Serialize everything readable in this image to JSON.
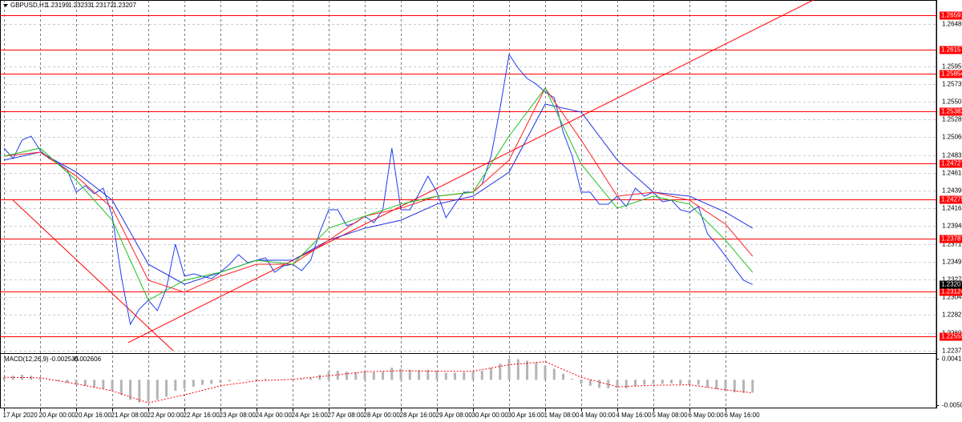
{
  "chart_data": [
    {
      "type": "line",
      "symbol": "GBPUSD,H1",
      "header_values": [
        1.23199,
        1.23233,
        1.23172,
        1.23207
      ],
      "xlim": [
        -1.8,
        413.5
      ],
      "ylim": [
        1.22355,
        1.26782
      ],
      "grid": true,
      "xticks": [
        {
          "value": 0,
          "label": "17 Apr 2020"
        },
        {
          "value": 16,
          "label": "20 Apr 00:00"
        },
        {
          "value": 32,
          "label": "20 Apr 16:00"
        },
        {
          "value": 48,
          "label": "21 Apr 08:00"
        },
        {
          "value": 64,
          "label": "22 Apr 00:00"
        },
        {
          "value": 80,
          "label": "22 Apr 16:00"
        },
        {
          "value": 96,
          "label": "23 Apr 08:00"
        },
        {
          "value": 112,
          "label": "24 Apr 00:00"
        },
        {
          "value": 128,
          "label": "24 Apr 16:00"
        },
        {
          "value": 144,
          "label": "27 Apr 08:00"
        },
        {
          "value": 160,
          "label": "28 Apr 00:00"
        },
        {
          "value": 176,
          "label": "28 Apr 16:00"
        },
        {
          "value": 192,
          "label": "29 Apr 08:00"
        },
        {
          "value": 208,
          "label": "30 Apr 00:00"
        },
        {
          "value": 224,
          "label": "30 Apr 16:00"
        },
        {
          "value": 240,
          "label": "1 May 08:00"
        },
        {
          "value": 256,
          "label": "4 May 00:00"
        },
        {
          "value": 272,
          "label": "4 May 16:00"
        },
        {
          "value": 288,
          "label": "5 May 08:00"
        },
        {
          "value": 304,
          "label": "6 May 00:00"
        },
        {
          "value": 320,
          "label": "6 May 16:00"
        }
      ],
      "yticks": [
        {
          "value": 1.2648,
          "label": "1.26480"
        },
        {
          "value": 1.2595,
          "label": "1.25950"
        },
        {
          "value": 1.2573,
          "label": "1.25730"
        },
        {
          "value": 1.25505,
          "label": "1.25505"
        },
        {
          "value": 1.2528,
          "label": "1.25280"
        },
        {
          "value": 1.2506,
          "label": "1.25060"
        },
        {
          "value": 1.24835,
          "label": "1.24835"
        },
        {
          "value": 1.2461,
          "label": "1.24610"
        },
        {
          "value": 1.2439,
          "label": "1.24390"
        },
        {
          "value": 1.24165,
          "label": "1.24165"
        },
        {
          "value": 1.2394,
          "label": "1.23940"
        },
        {
          "value": 1.23715,
          "label": "1.23715"
        },
        {
          "value": 1.23495,
          "label": "1.23495"
        },
        {
          "value": 1.2327,
          "label": "1.23270"
        },
        {
          "value": 1.23045,
          "label": "1.23045"
        },
        {
          "value": 1.22825,
          "label": "1.22825"
        },
        {
          "value": 1.226,
          "label": "1.22600"
        },
        {
          "value": 1.22375,
          "label": "1.22375"
        }
      ],
      "levels": [
        1.26591,
        1.26157,
        1.25854,
        1.25382,
        1.24727,
        1.24275,
        1.23787,
        1.23124,
        1.22555
      ],
      "level_color": "#ff0000",
      "trendlines": [
        {
          "x": [
            4,
            75
          ],
          "values": [
            1.24266,
            1.22375
          ]
        },
        {
          "x": [
            55,
            359
          ],
          "values": [
            1.22476,
            1.26782
          ]
        }
      ],
      "series": [
        {
          "color": "#1f3df0",
          "x": [
            0,
            4,
            8,
            12,
            16,
            20,
            24,
            28,
            32,
            36,
            40,
            44,
            48,
            52,
            56,
            60,
            64,
            68,
            72,
            76,
            80,
            84,
            88,
            92,
            96,
            100,
            104,
            108,
            112,
            116,
            120,
            124,
            128,
            132,
            136,
            140,
            144,
            148,
            152,
            156,
            160,
            164,
            168,
            172,
            176,
            180,
            184,
            188,
            192,
            196,
            200,
            204,
            208,
            212,
            216,
            220,
            224,
            228,
            232,
            236,
            240,
            244,
            248,
            252,
            256,
            260,
            264,
            268,
            272,
            276,
            280,
            284,
            288,
            292,
            296,
            300,
            304,
            308,
            312,
            316,
            320,
            324,
            328,
            332
          ],
          "values": [
            1.24921,
            1.2479,
            1.25021,
            1.25072,
            1.24891,
            1.2479,
            1.2473,
            1.24649,
            1.24367,
            1.24448,
            1.24347,
            1.24418,
            1.24066,
            1.23311,
            1.22708,
            1.22899,
            1.23009,
            1.22879,
            1.2316,
            1.23714,
            1.23311,
            1.23341,
            1.23311,
            1.23281,
            1.23361,
            1.23462,
            1.23583,
            1.23482,
            1.23512,
            1.23543,
            1.23361,
            1.23442,
            1.23462,
            1.23382,
            1.23512,
            1.23864,
            1.24146,
            1.24146,
            1.23945,
            1.23985,
            1.24066,
            1.23985,
            1.24146,
            1.24921,
            1.24146,
            1.24146,
            1.24347,
            1.24569,
            1.24367,
            1.24046,
            1.24217,
            1.24367,
            1.24367,
            1.24468,
            1.2482,
            1.25424,
            1.26098,
            1.25927,
            1.25796,
            1.25726,
            1.25625,
            1.25555,
            1.25122,
            1.2482,
            1.24367,
            1.24367,
            1.24217,
            1.24217,
            1.24317,
            1.24186,
            1.24418,
            1.24317,
            1.24367,
            1.24247,
            1.24267,
            1.24146,
            1.24116,
            1.24186,
            1.23844,
            1.23714,
            1.23563,
            1.23412,
            1.23261,
            1.23207
          ]
        },
        {
          "color": "#2030e0",
          "x": [
            0,
            16,
            32,
            48,
            64,
            80,
            96,
            112,
            128,
            144,
            160,
            176,
            192,
            208,
            224,
            240,
            256,
            272,
            288,
            304,
            320,
            332
          ],
          "values": [
            1.2477,
            1.2487,
            1.24619,
            1.24267,
            1.23462,
            1.23211,
            1.23361,
            1.23512,
            1.23512,
            1.23764,
            1.23915,
            1.24015,
            1.24217,
            1.24317,
            1.24619,
            1.25474,
            1.25373,
            1.2477,
            1.24367,
            1.24317,
            1.24116,
            1.23915
          ]
        },
        {
          "color": "#ff2020",
          "x": [
            0,
            16,
            32,
            48,
            64,
            80,
            96,
            112,
            128,
            144,
            160,
            176,
            192,
            208,
            224,
            240,
            256,
            272,
            288,
            304,
            320,
            332
          ],
          "values": [
            1.2482,
            1.2487,
            1.24569,
            1.24166,
            1.23261,
            1.2311,
            1.23311,
            1.23462,
            1.23462,
            1.23764,
            1.24066,
            1.24166,
            1.24317,
            1.24367,
            1.2477,
            1.25675,
            1.25021,
            1.24317,
            1.24367,
            1.24267,
            1.23965,
            1.23563
          ]
        },
        {
          "color": "#20c020",
          "x": [
            0,
            16,
            32,
            48,
            64,
            80,
            96,
            112,
            128,
            144,
            160,
            176,
            192,
            208,
            224,
            240,
            256,
            272,
            288,
            304,
            320,
            332
          ],
          "values": [
            1.2482,
            1.24921,
            1.24518,
            1.24015,
            1.23009,
            1.23261,
            1.23361,
            1.23512,
            1.23462,
            1.23915,
            1.24066,
            1.24217,
            1.24317,
            1.24367,
            1.25072,
            1.25675,
            1.2472,
            1.24166,
            1.24317,
            1.24217,
            1.23764,
            1.23361
          ]
        }
      ]
    },
    {
      "type": "macd",
      "label": "MACD(12,26,9)",
      "values_shown": [
        -0.002535,
        -0.002606
      ],
      "ylim": [
        -0.005698,
        0.004989
      ],
      "yticks": [
        0.004191,
        -0.00506
      ],
      "series": [
        {
          "style": "bar",
          "color": "#b4b4b4",
          "x": [
            0,
            4,
            8,
            12,
            16,
            20,
            24,
            28,
            32,
            36,
            40,
            44,
            48,
            52,
            56,
            60,
            64,
            68,
            72,
            76,
            80,
            84,
            88,
            92,
            96,
            100,
            104,
            108,
            112,
            116,
            120,
            124,
            128,
            132,
            136,
            140,
            144,
            148,
            152,
            156,
            160,
            164,
            168,
            172,
            176,
            180,
            184,
            188,
            192,
            196,
            200,
            204,
            208,
            212,
            216,
            220,
            224,
            228,
            232,
            236,
            240,
            244,
            248,
            252,
            256,
            260,
            264,
            268,
            272,
            276,
            280,
            284,
            288,
            292,
            296,
            300,
            304,
            308,
            312,
            316,
            320,
            324,
            328,
            332
          ],
          "values": [
            0.0005,
            0.0008,
            0.001,
            0.0008,
            0.0004,
            0.0,
            -0.0003,
            -0.0006,
            -0.001,
            -0.0012,
            -0.0015,
            -0.0018,
            -0.0022,
            -0.003,
            -0.004,
            -0.0045,
            -0.0044,
            -0.004,
            -0.0034,
            -0.0022,
            -0.0018,
            -0.0014,
            -0.001,
            -0.0008,
            -0.0006,
            -0.0003,
            -0.0001,
            0.0,
            0.0002,
            0.0002,
            0.0,
            0.0001,
            0.0002,
            0.0002,
            0.0004,
            0.001,
            0.0016,
            0.0018,
            0.0016,
            0.0015,
            0.0016,
            0.0015,
            0.0016,
            0.0024,
            0.0022,
            0.002,
            0.0019,
            0.002,
            0.0018,
            0.0014,
            0.0014,
            0.0015,
            0.0016,
            0.0018,
            0.0024,
            0.0032,
            0.0042,
            0.0041,
            0.0038,
            0.0034,
            0.0028,
            0.0022,
            0.0012,
            0.0002,
            -0.0008,
            -0.0012,
            -0.0016,
            -0.0017,
            -0.0016,
            -0.0017,
            -0.0013,
            -0.001,
            -0.0008,
            -0.0008,
            -0.0007,
            -0.0009,
            -0.001,
            -0.001,
            -0.0015,
            -0.0019,
            -0.0022,
            -0.0025,
            -0.0026,
            -0.0025
          ]
        },
        {
          "style": "line",
          "color": "#ff0000",
          "x": [
            0,
            16,
            32,
            48,
            64,
            80,
            96,
            112,
            128,
            144,
            160,
            176,
            192,
            208,
            224,
            240,
            256,
            272,
            288,
            304,
            320,
            332
          ],
          "values": [
            0.0005,
            0.0004,
            -0.0008,
            -0.0022,
            -0.0046,
            -0.003,
            -0.0012,
            -0.0002,
            0.0001,
            0.0008,
            0.0016,
            0.0018,
            0.0017,
            0.0017,
            0.003,
            0.0036,
            0.0005,
            -0.0014,
            -0.0011,
            -0.001,
            -0.002,
            -0.0026
          ]
        }
      ]
    }
  ]
}
